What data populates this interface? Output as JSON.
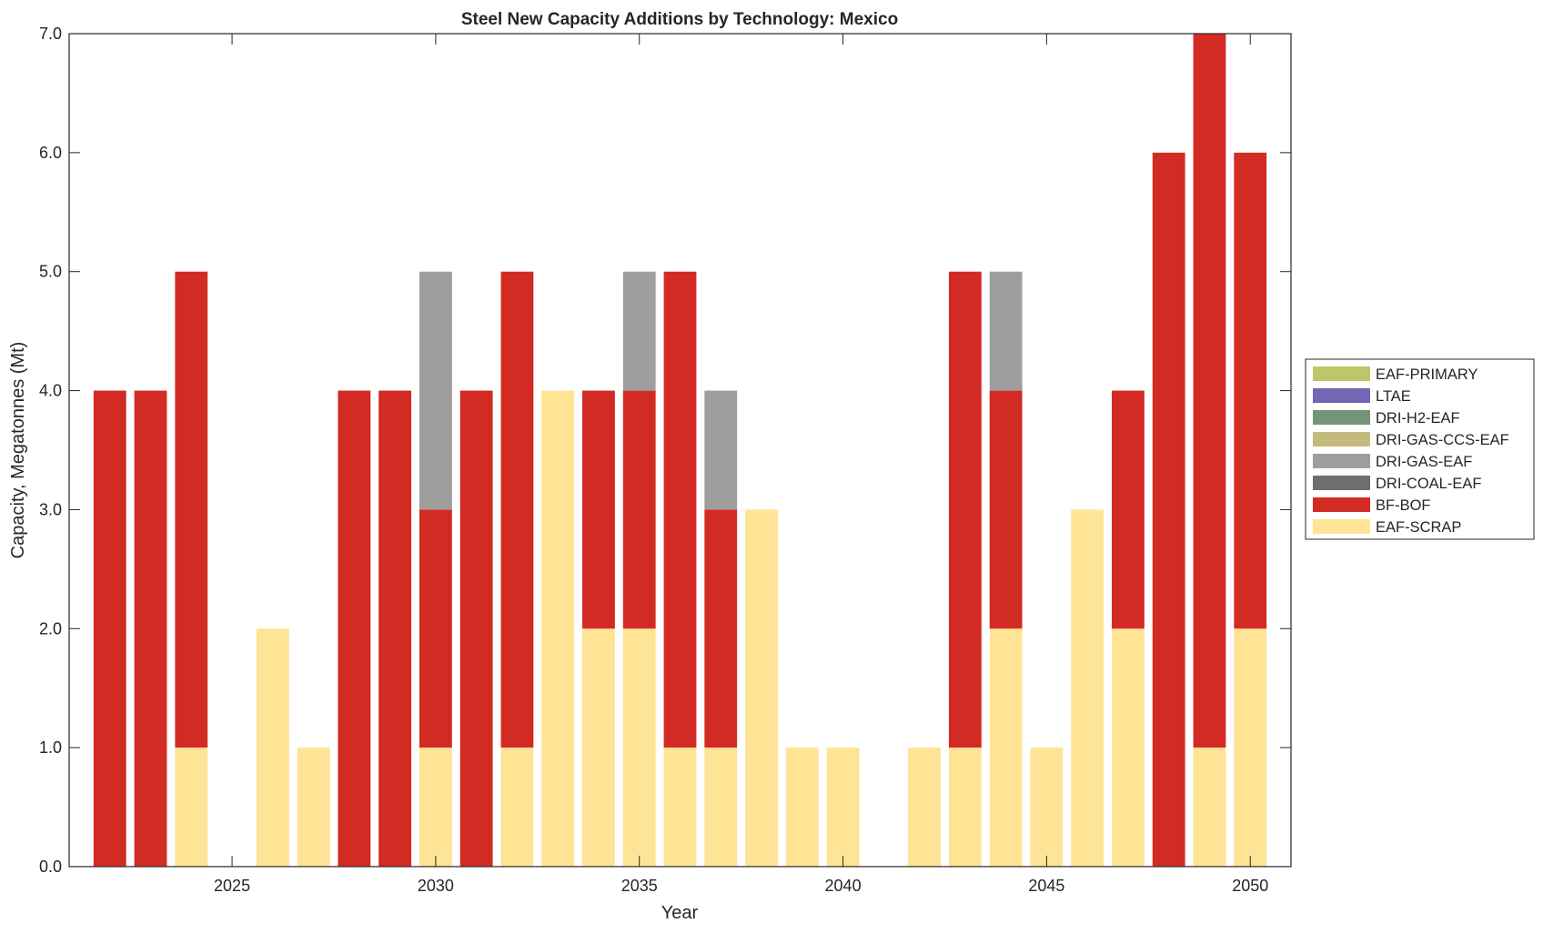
{
  "chart_data": {
    "type": "bar",
    "stacked": true,
    "title": "Steel New Capacity Additions by Technology: Mexico",
    "xlabel": "Year",
    "ylabel": "Capacity, Megatonnes (Mt)",
    "xlim": [
      2021,
      2051
    ],
    "ylim": [
      0,
      7
    ],
    "xticks": [
      2025,
      2030,
      2035,
      2040,
      2045,
      2050
    ],
    "yticks": [
      "0.0",
      "1.0",
      "2.0",
      "3.0",
      "4.0",
      "5.0",
      "6.0",
      "7.0"
    ],
    "legend_position": "right-outside",
    "x": [
      2022,
      2023,
      2024,
      2025,
      2026,
      2027,
      2028,
      2029,
      2030,
      2031,
      2032,
      2033,
      2034,
      2035,
      2036,
      2037,
      2038,
      2039,
      2040,
      2041,
      2042,
      2043,
      2044,
      2045,
      2046,
      2047,
      2048,
      2049,
      2050
    ],
    "series": [
      {
        "name": "EAF-SCRAP",
        "color": "#FFE495",
        "values": [
          0,
          0,
          1,
          0,
          2,
          1,
          0,
          0,
          1,
          0,
          1,
          4,
          2,
          2,
          1,
          1,
          3,
          1,
          1,
          0,
          1,
          1,
          2,
          1,
          3,
          2,
          0,
          1,
          2
        ]
      },
      {
        "name": "BF-BOF",
        "color": "#D22B24",
        "values": [
          4,
          4,
          4,
          0,
          0,
          0,
          4,
          4,
          2,
          4,
          4,
          0,
          2,
          2,
          4,
          2,
          0,
          0,
          0,
          0,
          0,
          4,
          2,
          0,
          0,
          2,
          6,
          6,
          4
        ]
      },
      {
        "name": "DRI-COAL-EAF",
        "color": "#6E6E6E",
        "values": [
          0,
          0,
          0,
          0,
          0,
          0,
          0,
          0,
          0,
          0,
          0,
          0,
          0,
          0,
          0,
          0,
          0,
          0,
          0,
          0,
          0,
          0,
          0,
          0,
          0,
          0,
          0,
          0,
          0
        ]
      },
      {
        "name": "DRI-GAS-EAF",
        "color": "#9E9E9C",
        "values": [
          0,
          0,
          0,
          0,
          0,
          0,
          0,
          0,
          2,
          0,
          0,
          0,
          0,
          1,
          0,
          1,
          0,
          0,
          0,
          0,
          0,
          0,
          1,
          0,
          0,
          0,
          0,
          0,
          0
        ]
      },
      {
        "name": "DRI-GAS-CCS-EAF",
        "color": "#C5BA7E",
        "values": [
          0,
          0,
          0,
          0,
          0,
          0,
          0,
          0,
          0,
          0,
          0,
          0,
          0,
          0,
          0,
          0,
          0,
          0,
          0,
          0,
          0,
          0,
          0,
          0,
          0,
          0,
          0,
          0,
          0
        ]
      },
      {
        "name": "DRI-H2-EAF",
        "color": "#72957A",
        "values": [
          0,
          0,
          0,
          0,
          0,
          0,
          0,
          0,
          0,
          0,
          0,
          0,
          0,
          0,
          0,
          0,
          0,
          0,
          0,
          0,
          0,
          0,
          0,
          0,
          0,
          0,
          0,
          0,
          0
        ]
      },
      {
        "name": "LTAE",
        "color": "#7266B5",
        "values": [
          0,
          0,
          0,
          0,
          0,
          0,
          0,
          0,
          0,
          0,
          0,
          0,
          0,
          0,
          0,
          0,
          0,
          0,
          0,
          0,
          0,
          0,
          0,
          0,
          0,
          0,
          0,
          0,
          0
        ]
      },
      {
        "name": "EAF-PRIMARY",
        "color": "#BDC66B",
        "values": [
          0,
          0,
          0,
          0,
          0,
          0,
          0,
          0,
          0,
          0,
          0,
          0,
          0,
          0,
          0,
          0,
          0,
          0,
          0,
          0,
          0,
          0,
          0,
          0,
          0,
          0,
          0,
          0,
          0
        ]
      }
    ],
    "legend_order": [
      "EAF-PRIMARY",
      "LTAE",
      "DRI-H2-EAF",
      "DRI-GAS-CCS-EAF",
      "DRI-GAS-EAF",
      "DRI-COAL-EAF",
      "BF-BOF",
      "EAF-SCRAP"
    ]
  }
}
